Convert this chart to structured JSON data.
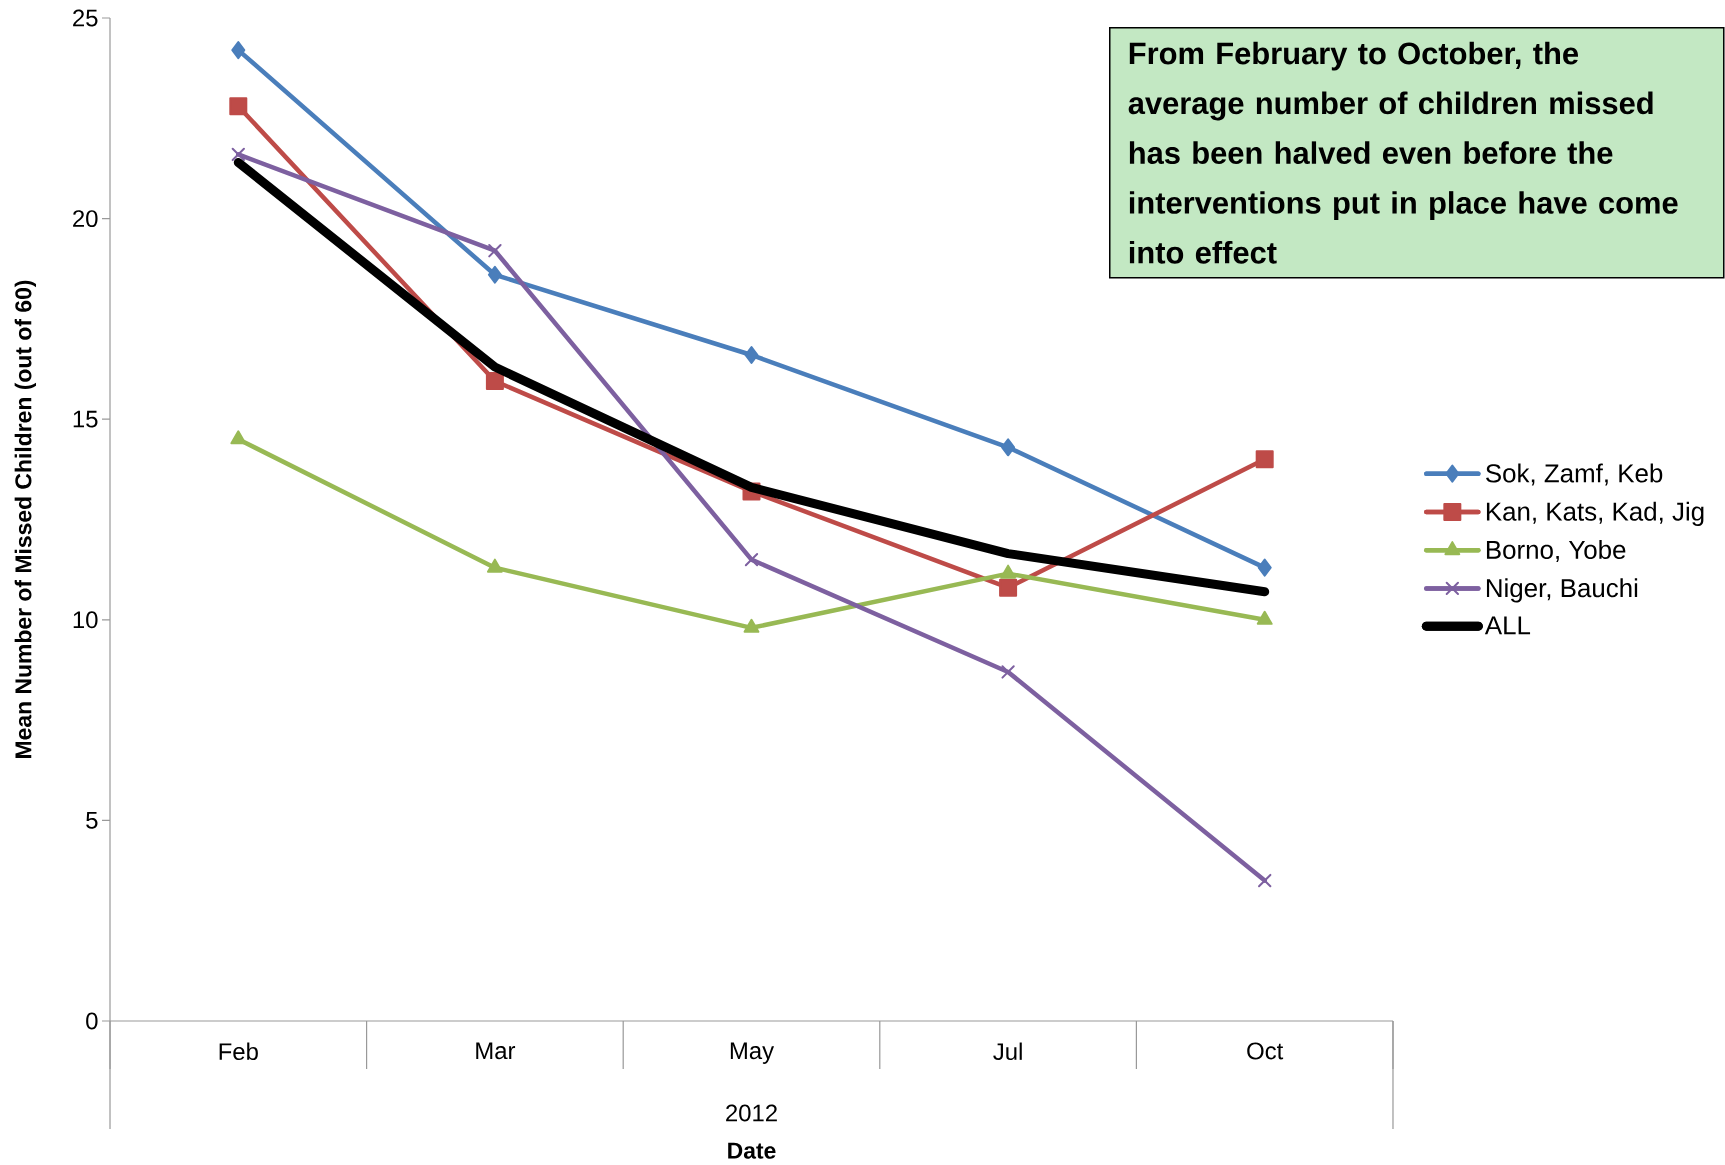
{
  "chart_data": {
    "type": "line",
    "xlabel": "Date",
    "ylabel": "Mean Number of Missed Children (out of 60)",
    "categories": [
      "Feb",
      "Mar",
      "May",
      "Jul",
      "Oct"
    ],
    "series": [
      {
        "name": "Sok, Zamf, Keb",
        "color": "#4a7ebb",
        "marker": "diamond",
        "values": [
          24.2,
          18.6,
          16.6,
          14.3,
          11.3
        ]
      },
      {
        "name": "Kan, Kats, Kad, Jig",
        "color": "#be4b48",
        "marker": "square",
        "values": [
          22.8,
          15.95,
          13.2,
          10.8,
          14.0
        ]
      },
      {
        "name": "Borno, Yobe",
        "color": "#98b954",
        "marker": "triangle",
        "values": [
          14.5,
          11.3,
          9.8,
          11.15,
          10.0
        ]
      },
      {
        "name": "Niger, Bauchi",
        "color": "#7d60a0",
        "marker": "cross",
        "values": [
          21.6,
          19.2,
          11.5,
          8.7,
          3.5
        ]
      },
      {
        "name": "ALL",
        "color": "#000000",
        "marker": "none",
        "values": [
          21.4,
          16.3,
          13.3,
          11.65,
          10.7
        ]
      }
    ],
    "ylim": [
      0,
      25
    ],
    "yticks": [
      0,
      5,
      10,
      15,
      20,
      25
    ],
    "grid": false,
    "legend": "right",
    "annotations": [
      "**From February to October, the average number of children missed has been halved even before the interventions put in place have come into effect**",
      "2012"
    ]
  }
}
